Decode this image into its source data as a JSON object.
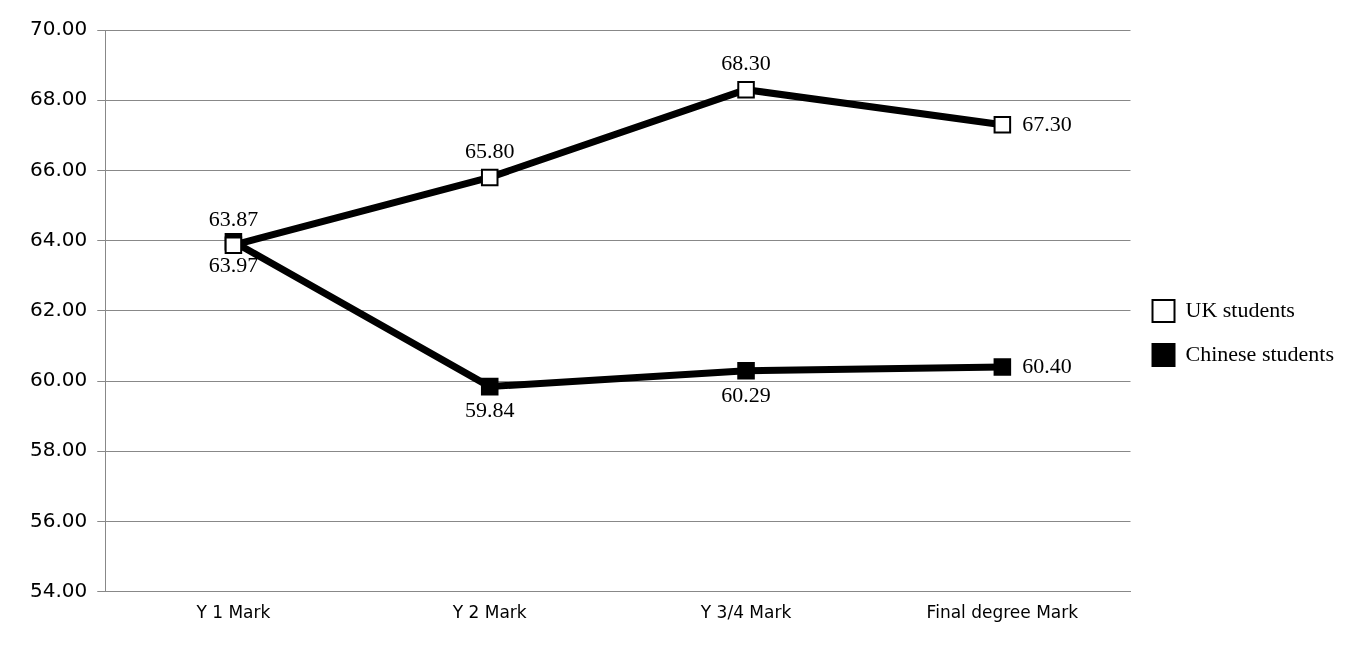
{
  "chart_data": {
    "type": "line",
    "categories": [
      "Y 1 Mark",
      "Y 2 Mark",
      "Y 3/4 Mark",
      "Final degree Mark"
    ],
    "series": [
      {
        "name": "UK students",
        "color": "#000000",
        "values": [
          63.87,
          65.8,
          68.3,
          67.3
        ],
        "value_labels": [
          "63.87",
          "65.80",
          "68.30",
          "67.30"
        ]
      },
      {
        "name": "Chinese students",
        "color": "#000000",
        "values": [
          63.97,
          59.84,
          60.29,
          60.4
        ],
        "value_labels": [
          "63.97",
          "59.84",
          "60.29",
          "60.40"
        ]
      }
    ],
    "ylim": [
      54,
      70
    ],
    "yticks": [
      {
        "value": 54,
        "label": "54.00"
      },
      {
        "value": 56,
        "label": "56.00"
      },
      {
        "value": 58,
        "label": "58.00"
      },
      {
        "value": 60,
        "label": "60.00"
      },
      {
        "value": 62,
        "label": "62.00"
      },
      {
        "value": 64,
        "label": "64.00"
      },
      {
        "value": 66,
        "label": "66.00"
      },
      {
        "value": 68,
        "label": "68.00"
      },
      {
        "value": 70,
        "label": "70.00"
      }
    ],
    "grid": "y",
    "legend": "right",
    "marker": "square",
    "line_style": "solid"
  }
}
